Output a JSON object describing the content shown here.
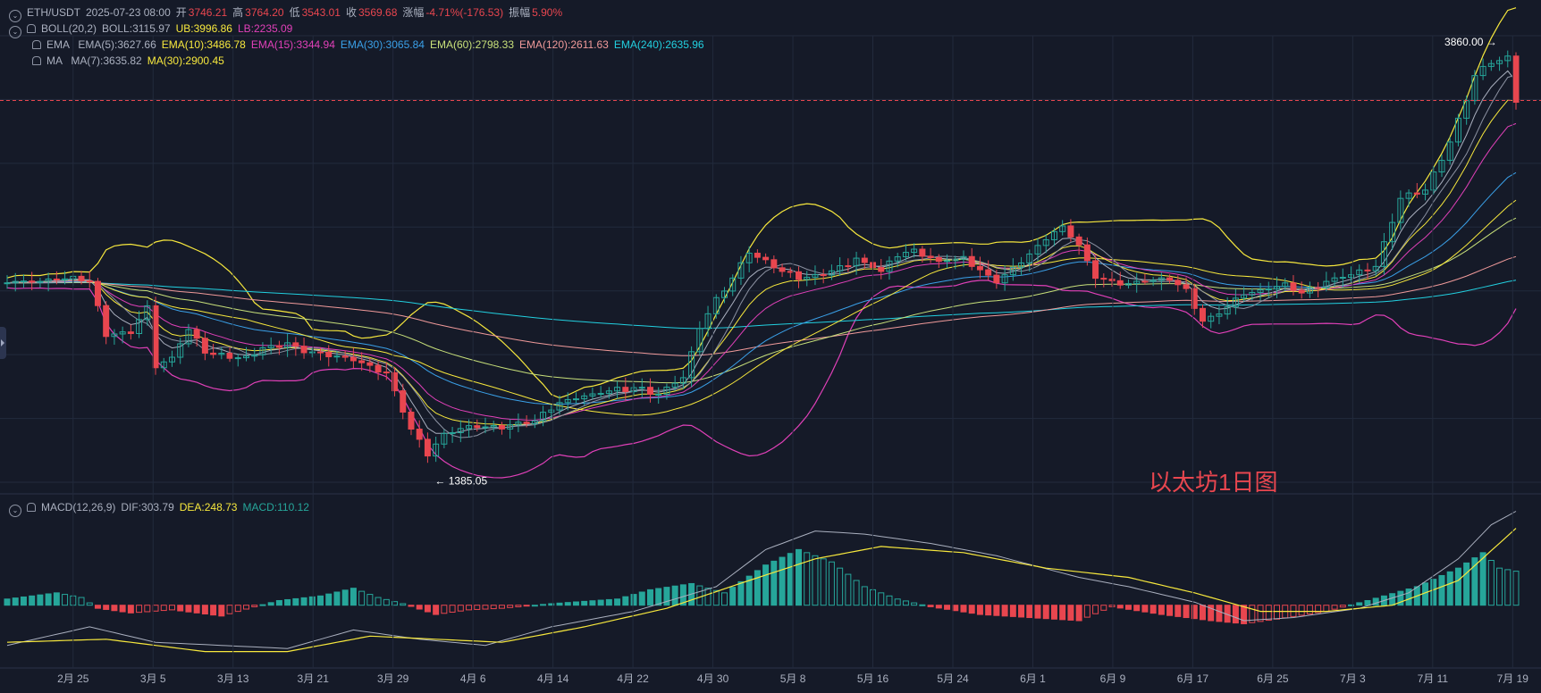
{
  "header": {
    "symbol": "ETH/USDT",
    "datetime": "2025-07-23 08:00",
    "open_label": "开",
    "open": "3746.21",
    "high_label": "高",
    "high": "3764.20",
    "low_label": "低",
    "low": "3543.01",
    "close_label": "收",
    "close": "3569.68",
    "change_label": "涨幅",
    "change": "-4.71%(-176.53)",
    "amp_label": "振幅",
    "amp": "5.90%"
  },
  "indicators": {
    "boll": {
      "name": "BOLL(20,2)",
      "mid": "BOLL:3115.97",
      "ub": "UB:3996.86",
      "lb": "LB:2235.09"
    },
    "ema": {
      "name": "EMA",
      "items": [
        {
          "text": "EMA(5):3627.66",
          "color": "#aab0bf"
        },
        {
          "text": "EMA(10):3486.78",
          "color": "#f7e83d"
        },
        {
          "text": "EMA(15):3344.94",
          "color": "#e040b8"
        },
        {
          "text": "EMA(30):3065.84",
          "color": "#3aa0e8"
        },
        {
          "text": "EMA(60):2798.33",
          "color": "#c8e07a"
        },
        {
          "text": "EMA(120):2611.63",
          "color": "#f09a9a"
        },
        {
          "text": "EMA(240):2635.96",
          "color": "#22d0e0"
        }
      ]
    },
    "ma": {
      "name": "MA",
      "items": [
        {
          "text": "MA(7):3635.82",
          "color": "#aab0bf"
        },
        {
          "text": "MA(30):2900.45",
          "color": "#f7e83d"
        }
      ]
    },
    "macd": {
      "name": "MACD(12,26,9)",
      "dif": "DIF:303.79",
      "dea": "DEA:248.73",
      "macd": "MACD:110.12"
    }
  },
  "watermark": "以太坊1日图",
  "colors": {
    "up": "#26a69a",
    "down": "#e8464f",
    "bg": "#151a28",
    "grid": "#222a3c"
  },
  "chart_data": {
    "type": "candlestick",
    "x_ticks": [
      "2月 25",
      "3月 5",
      "3月 13",
      "3月 21",
      "3月 29",
      "4月 6",
      "4月 14",
      "4月 22",
      "4月 30",
      "5月 8",
      "5月 16",
      "5月 24",
      "6月 1",
      "6月 9",
      "6月 17",
      "6月 25",
      "7月 3",
      "7月 11",
      "7月 19"
    ],
    "max_label": "3860.00",
    "min_label": "1385.05",
    "current_price": 3569.68,
    "price_range": [
      1270,
      3960
    ],
    "anchors": [
      [
        0,
        2480
      ],
      [
        4,
        2480
      ],
      [
        8,
        2500
      ],
      [
        10,
        2480
      ],
      [
        12,
        2160
      ],
      [
        15,
        2170
      ],
      [
        17,
        2330
      ],
      [
        18,
        1970
      ],
      [
        20,
        2020
      ],
      [
        22,
        2190
      ],
      [
        24,
        2050
      ],
      [
        27,
        2020
      ],
      [
        29,
        2020
      ],
      [
        31,
        2080
      ],
      [
        34,
        2110
      ],
      [
        36,
        2060
      ],
      [
        38,
        2050
      ],
      [
        40,
        2030
      ],
      [
        43,
        1990
      ],
      [
        46,
        1930
      ],
      [
        49,
        1590
      ],
      [
        51,
        1440
      ],
      [
        53,
        1560
      ],
      [
        56,
        1610
      ],
      [
        59,
        1600
      ],
      [
        64,
        1640
      ],
      [
        67,
        1750
      ],
      [
        70,
        1790
      ],
      [
        73,
        1820
      ],
      [
        76,
        1840
      ],
      [
        79,
        1800
      ],
      [
        82,
        1900
      ],
      [
        84,
        2200
      ],
      [
        86,
        2370
      ],
      [
        88,
        2500
      ],
      [
        90,
        2650
      ],
      [
        92,
        2600
      ],
      [
        94,
        2540
      ],
      [
        96,
        2500
      ],
      [
        98,
        2510
      ],
      [
        101,
        2560
      ],
      [
        103,
        2620
      ],
      [
        106,
        2540
      ],
      [
        108,
        2640
      ],
      [
        110,
        2670
      ],
      [
        113,
        2600
      ],
      [
        116,
        2620
      ],
      [
        118,
        2550
      ],
      [
        120,
        2480
      ],
      [
        123,
        2600
      ],
      [
        125,
        2690
      ],
      [
        127,
        2780
      ],
      [
        128,
        2800
      ],
      [
        130,
        2700
      ],
      [
        132,
        2510
      ],
      [
        135,
        2460
      ],
      [
        138,
        2480
      ],
      [
        141,
        2500
      ],
      [
        143,
        2420
      ],
      [
        145,
        2240
      ],
      [
        147,
        2290
      ],
      [
        150,
        2400
      ],
      [
        153,
        2440
      ],
      [
        155,
        2460
      ],
      [
        157,
        2410
      ],
      [
        160,
        2480
      ],
      [
        163,
        2520
      ],
      [
        166,
        2570
      ],
      [
        169,
        2980
      ],
      [
        172,
        3030
      ],
      [
        175,
        3320
      ],
      [
        178,
        3720
      ],
      [
        180,
        3800
      ],
      [
        182,
        3820
      ],
      [
        183,
        3569
      ]
    ],
    "macd_anchors": [
      [
        0,
        20
      ],
      [
        6,
        40
      ],
      [
        9,
        25
      ],
      [
        11,
        -10
      ],
      [
        15,
        -25
      ],
      [
        20,
        -15
      ],
      [
        26,
        -35
      ],
      [
        30,
        -5
      ],
      [
        33,
        15
      ],
      [
        38,
        30
      ],
      [
        42,
        55
      ],
      [
        45,
        25
      ],
      [
        48,
        5
      ],
      [
        52,
        -30
      ],
      [
        56,
        -15
      ],
      [
        60,
        -10
      ],
      [
        66,
        5
      ],
      [
        74,
        20
      ],
      [
        78,
        50
      ],
      [
        83,
        70
      ],
      [
        87,
        40
      ],
      [
        92,
        130
      ],
      [
        96,
        180
      ],
      [
        100,
        140
      ],
      [
        104,
        60
      ],
      [
        108,
        20
      ],
      [
        112,
        -5
      ],
      [
        118,
        -30
      ],
      [
        124,
        -40
      ],
      [
        130,
        -50
      ],
      [
        134,
        -5
      ],
      [
        140,
        -30
      ],
      [
        146,
        -50
      ],
      [
        150,
        -60
      ],
      [
        154,
        -45
      ],
      [
        160,
        -20
      ],
      [
        165,
        15
      ],
      [
        171,
        60
      ],
      [
        176,
        120
      ],
      [
        179,
        170
      ],
      [
        181,
        120
      ],
      [
        183,
        110
      ]
    ],
    "dif_anchors": [
      [
        0,
        -130
      ],
      [
        10,
        -70
      ],
      [
        18,
        -120
      ],
      [
        26,
        -130
      ],
      [
        34,
        -140
      ],
      [
        42,
        -80
      ],
      [
        50,
        -110
      ],
      [
        58,
        -130
      ],
      [
        66,
        -70
      ],
      [
        76,
        -20
      ],
      [
        86,
        60
      ],
      [
        92,
        180
      ],
      [
        98,
        240
      ],
      [
        104,
        230
      ],
      [
        112,
        200
      ],
      [
        120,
        160
      ],
      [
        130,
        90
      ],
      [
        136,
        60
      ],
      [
        144,
        10
      ],
      [
        150,
        -50
      ],
      [
        156,
        -40
      ],
      [
        164,
        -10
      ],
      [
        170,
        40
      ],
      [
        176,
        150
      ],
      [
        180,
        260
      ],
      [
        183,
        303.79
      ]
    ],
    "dea_anchors": [
      [
        0,
        -120
      ],
      [
        12,
        -110
      ],
      [
        24,
        -150
      ],
      [
        34,
        -150
      ],
      [
        44,
        -100
      ],
      [
        52,
        -110
      ],
      [
        60,
        -120
      ],
      [
        70,
        -70
      ],
      [
        80,
        -10
      ],
      [
        90,
        80
      ],
      [
        98,
        150
      ],
      [
        106,
        190
      ],
      [
        116,
        170
      ],
      [
        126,
        120
      ],
      [
        136,
        90
      ],
      [
        144,
        40
      ],
      [
        152,
        -20
      ],
      [
        160,
        -20
      ],
      [
        168,
        0
      ],
      [
        176,
        80
      ],
      [
        183,
        248.73
      ]
    ],
    "macd_range": [
      -180,
      340
    ]
  }
}
